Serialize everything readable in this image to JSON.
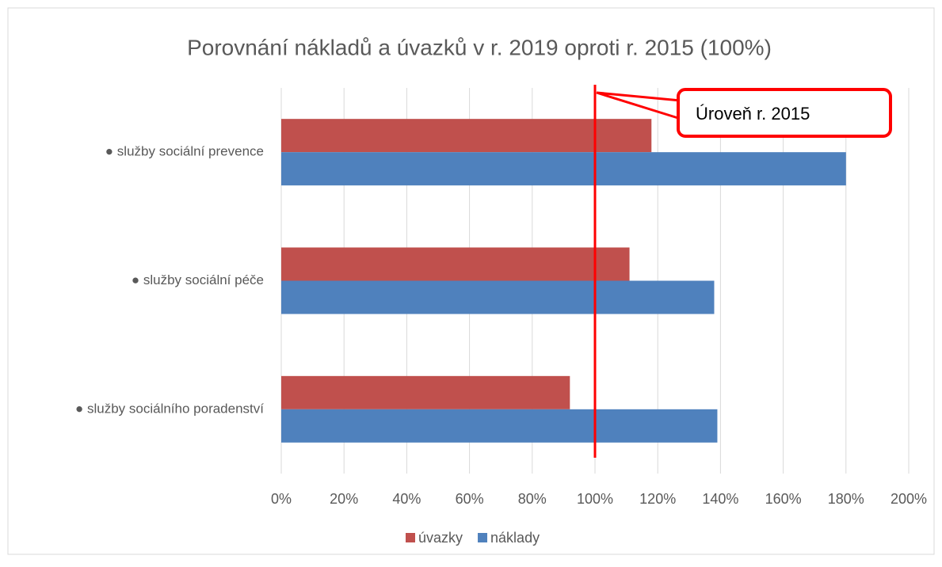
{
  "chart_data": {
    "type": "bar",
    "orientation": "horizontal",
    "title": "Porovnání nákladů a úvazků  v r. 2019 oproti r. 2015 (100%)",
    "categories": [
      "● služby sociální prevence",
      "● služby sociální péče",
      "● služby sociálního poradenství"
    ],
    "series": [
      {
        "name": "úvazky",
        "color": "#c0504d",
        "values": [
          118,
          111,
          92
        ]
      },
      {
        "name": "náklady",
        "color": "#4f81bd",
        "values": [
          180,
          138,
          139
        ]
      }
    ],
    "xlim": [
      0,
      200
    ],
    "xticks": [
      {
        "value": 0,
        "label": "0%"
      },
      {
        "value": 20,
        "label": "20%"
      },
      {
        "value": 40,
        "label": "40%"
      },
      {
        "value": 60,
        "label": "60%"
      },
      {
        "value": 80,
        "label": "80%"
      },
      {
        "value": 100,
        "label": "100%"
      },
      {
        "value": 120,
        "label": "120%"
      },
      {
        "value": 140,
        "label": "140%"
      },
      {
        "value": 160,
        "label": "160%"
      },
      {
        "value": 180,
        "label": "180%"
      },
      {
        "value": 200,
        "label": "200%"
      }
    ],
    "grid": true,
    "legend": "bottom",
    "reference_line": {
      "value": 100,
      "label": "Úroveň r. 2015",
      "color": "#ff0000"
    }
  }
}
